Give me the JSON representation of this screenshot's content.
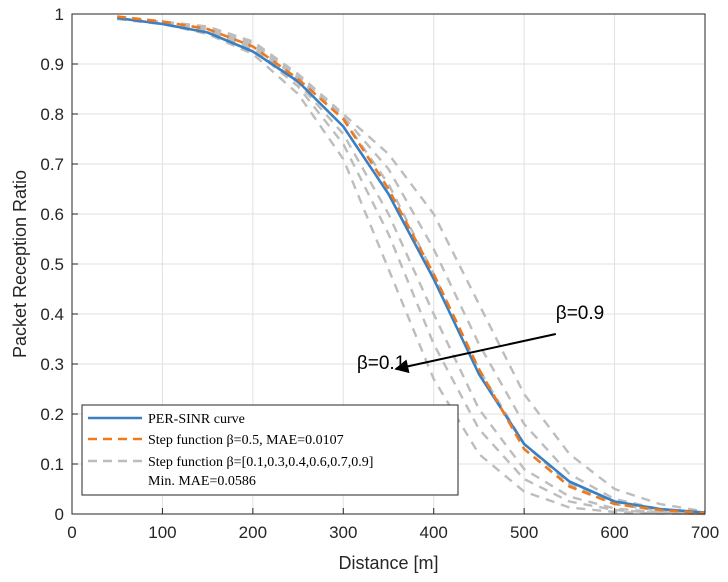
{
  "chart_data": {
    "type": "line",
    "title": "",
    "xlabel": "Distance [m]",
    "ylabel": "Packet Reception Ratio",
    "xlim": [
      0,
      700
    ],
    "ylim": [
      0,
      1
    ],
    "xticks": [
      0,
      100,
      200,
      300,
      400,
      500,
      600,
      700
    ],
    "yticks": [
      0,
      0.1,
      0.2,
      0.3,
      0.4,
      0.5,
      0.6,
      0.7,
      0.8,
      0.9,
      1
    ],
    "grid": true,
    "legend_position": "bottom-left",
    "x": [
      50,
      100,
      150,
      200,
      250,
      300,
      350,
      400,
      450,
      500,
      550,
      600,
      650,
      700
    ],
    "series": [
      {
        "name": "Step function β=0.1",
        "color": "#bdbdbd",
        "style": "dashed",
        "group": "gray",
        "values": [
          0.99,
          0.98,
          0.96,
          0.92,
          0.84,
          0.71,
          0.49,
          0.27,
          0.12,
          0.045,
          0.013,
          0.004,
          0.001,
          0.0
        ]
      },
      {
        "name": "Step function β=0.3",
        "color": "#bdbdbd",
        "style": "dashed",
        "group": "gray",
        "values": [
          0.99,
          0.98,
          0.965,
          0.93,
          0.855,
          0.74,
          0.56,
          0.34,
          0.17,
          0.07,
          0.025,
          0.008,
          0.002,
          0.0
        ]
      },
      {
        "name": "Step function β=0.4",
        "color": "#bdbdbd",
        "style": "dashed",
        "group": "gray",
        "values": [
          0.99,
          0.98,
          0.967,
          0.935,
          0.862,
          0.76,
          0.6,
          0.4,
          0.21,
          0.09,
          0.035,
          0.011,
          0.003,
          0.0
        ]
      },
      {
        "name": "Step function β=0.6",
        "color": "#bdbdbd",
        "style": "dashed",
        "group": "gray",
        "values": [
          0.99,
          0.982,
          0.97,
          0.94,
          0.87,
          0.79,
          0.66,
          0.48,
          0.29,
          0.14,
          0.06,
          0.02,
          0.006,
          0.001
        ]
      },
      {
        "name": "Step function β=0.7",
        "color": "#bdbdbd",
        "style": "dashed",
        "group": "gray",
        "values": [
          0.99,
          0.983,
          0.972,
          0.942,
          0.875,
          0.795,
          0.69,
          0.53,
          0.34,
          0.18,
          0.08,
          0.03,
          0.01,
          0.002
        ]
      },
      {
        "name": "Step function β=0.9",
        "color": "#bdbdbd",
        "style": "dashed",
        "group": "gray",
        "values": [
          0.99,
          0.985,
          0.975,
          0.945,
          0.88,
          0.8,
          0.72,
          0.6,
          0.42,
          0.24,
          0.12,
          0.05,
          0.02,
          0.005
        ]
      },
      {
        "name": "PER-SINR curve",
        "color": "#3a7fc1",
        "style": "solid",
        "group": "main",
        "values": [
          0.992,
          0.98,
          0.963,
          0.925,
          0.865,
          0.775,
          0.64,
          0.47,
          0.28,
          0.14,
          0.065,
          0.025,
          0.01,
          0.003
        ]
      },
      {
        "name": "Step function β=0.5, MAE=0.0107",
        "color": "#ee7a1f",
        "style": "dashed",
        "group": "main",
        "values": [
          0.995,
          0.985,
          0.97,
          0.935,
          0.87,
          0.79,
          0.65,
          0.48,
          0.29,
          0.13,
          0.055,
          0.02,
          0.008,
          0.002
        ]
      }
    ],
    "legend": [
      {
        "line1": "PER-SINR curve",
        "color": "#3a7fc1",
        "style": "solid"
      },
      {
        "line1": "Step function β=0.5, MAE=0.0107",
        "color": "#ee7a1f",
        "style": "dashed"
      },
      {
        "line1": "Step function β=[0.1,0.3,0.4,0.6,0.7,0.9]",
        "line2": "Min. MAE=0.0586",
        "color": "#bdbdbd",
        "style": "dashed"
      }
    ],
    "annotations": [
      {
        "text": "β=0.9",
        "x": 535,
        "y": 0.39
      },
      {
        "text": "β=0.1",
        "x": 315,
        "y": 0.29
      }
    ],
    "arrow": {
      "from": [
        535,
        0.36
      ],
      "to": [
        358,
        0.29
      ]
    }
  }
}
